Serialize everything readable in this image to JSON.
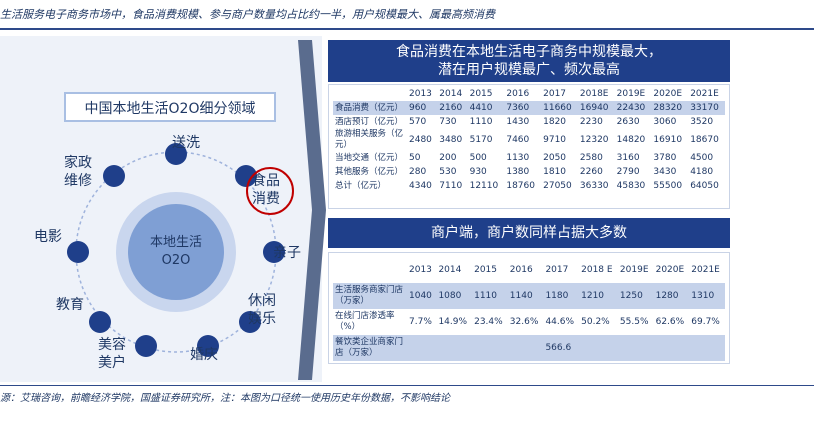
{
  "header": {
    "text": "生活服务电子商务市场中，食品消费规模、参与商户数量均占比约一半，用户规模最大、属最高频消费"
  },
  "left": {
    "title": "中国本地生活O2O细分领域",
    "center_label": "本地生活\nO2O",
    "segments": [
      "送洗",
      "家政\n维修",
      "食品\n消费",
      "电影",
      "亲子",
      "教育",
      "休闲\n娱乐",
      "美容\n美户",
      "婚庆"
    ]
  },
  "table1": {
    "title": "食品消费在本地生活电子商务中规模最大，潜在用户规模最广、频次最高",
    "years": [
      "2013",
      "2014",
      "2015",
      "2016",
      "2017",
      "2018E",
      "2019E",
      "2020E",
      "2021E"
    ],
    "rows": [
      {
        "label": "食品消费（亿元）",
        "values": [
          "960",
          "2160",
          "4410",
          "7360",
          "11660",
          "16940",
          "22430",
          "28320",
          "33170"
        ],
        "highlight": true
      },
      {
        "label": "酒店预订（亿元）",
        "values": [
          "570",
          "730",
          "1110",
          "1430",
          "1820",
          "2230",
          "2630",
          "3060",
          "3520"
        ],
        "highlight": false
      },
      {
        "label": "旅游相关服务（亿元）",
        "values": [
          "2480",
          "3480",
          "5170",
          "7460",
          "9710",
          "12320",
          "14820",
          "16910",
          "18670"
        ],
        "highlight": false
      },
      {
        "label": "当地交通（亿元）",
        "values": [
          "50",
          "200",
          "500",
          "1130",
          "2050",
          "2580",
          "3160",
          "3780",
          "4500"
        ],
        "highlight": false
      },
      {
        "label": "其他服务（亿元）",
        "values": [
          "280",
          "530",
          "930",
          "1380",
          "1810",
          "2260",
          "2790",
          "3430",
          "4180"
        ],
        "highlight": false
      },
      {
        "label": "总计（亿元）",
        "values": [
          "4340",
          "7110",
          "12110",
          "18760",
          "27050",
          "36330",
          "45830",
          "55500",
          "64050"
        ],
        "highlight": false
      }
    ]
  },
  "table2": {
    "title": "商户端，商户数同样占据大多数",
    "years": [
      "2013",
      "2014",
      "2015",
      "2016",
      "2017",
      "2018 E",
      "2019E",
      "2020E",
      "2021E"
    ],
    "rows": [
      {
        "label": "生活服务商家门店（万家）",
        "values": [
          "1040",
          "1080",
          "1110",
          "1140",
          "1180",
          "1210",
          "1250",
          "1280",
          "1310"
        ],
        "highlight": true
      },
      {
        "label": "在线门店渗透率（%）",
        "values": [
          "7.7%",
          "14.9%",
          "23.4%",
          "32.6%",
          "44.6%",
          "50.2%",
          "55.5%",
          "62.6%",
          "69.7%"
        ],
        "highlight": false
      },
      {
        "label": "餐饮类企业商家门店（万家）",
        "single_value": "566.6",
        "highlight": true
      }
    ]
  },
  "footer": {
    "text": "源：艾瑞咨询，前瞻经济学院，国盛证券研究所，注：本图为口径统一使用历史年份数据，不影响结论"
  },
  "colors": {
    "navy": "#1f3f8a",
    "dot": "#1f3f8a",
    "circle_light": "#a9bfe3",
    "panel": "#eef2f9",
    "row_highlight": "#c5d2ea",
    "accent_red": "#c00000"
  }
}
